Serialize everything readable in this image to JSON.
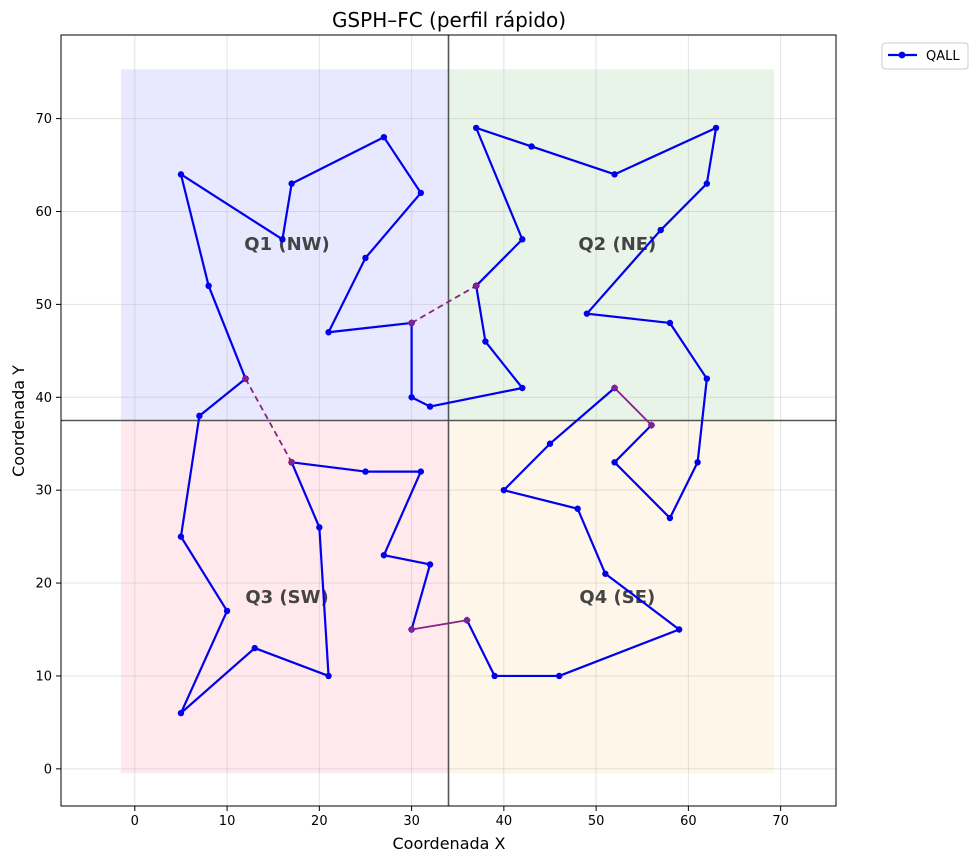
{
  "chart_data": {
    "type": "line",
    "title": "GSPH–FC (perfil rápido)",
    "xlabel": "Coordenada X",
    "ylabel": "Coordenada Y",
    "xlim": [
      -8,
      76
    ],
    "ylim": [
      -4,
      79
    ],
    "xticks": [
      "0",
      "10",
      "20",
      "30",
      "40",
      "50",
      "60",
      "70"
    ],
    "yticks": [
      "0",
      "10",
      "20",
      "30",
      "40",
      "50",
      "60",
      "70"
    ],
    "grid": true,
    "legend": {
      "placement": "top-right-outside",
      "entries": [
        "QALL"
      ]
    },
    "colors": {
      "route": "#0000ee",
      "connector": "#882288",
      "divider": "#555555",
      "q1": "#e8e8ff",
      "q2": "#e9f4e9",
      "q3": "#ffe9ec",
      "q4": "#fff6ea",
      "quadrant_label": "#444444"
    },
    "dividers": {
      "x": 34,
      "y": 37.5
    },
    "quadrants": [
      {
        "label": "Q1 (NW)",
        "x0": -1.5,
        "x1": 34,
        "y0": 37.5,
        "y1": 75.3,
        "color_key": "q1",
        "label_x": 16.5,
        "label_y": 56.5
      },
      {
        "label": "Q2 (NE)",
        "x0": 34,
        "x1": 69.3,
        "y0": 37.5,
        "y1": 75.3,
        "color_key": "q2",
        "label_x": 52.3,
        "label_y": 56.5
      },
      {
        "label": "Q3 (SW)",
        "x0": -1.5,
        "x1": 34,
        "y0": -0.5,
        "y1": 37.5,
        "color_key": "q3",
        "label_x": 16.5,
        "label_y": 18.5
      },
      {
        "label": "Q4 (SE)",
        "x0": 34,
        "x1": 69.3,
        "y0": -0.5,
        "y1": 37.5,
        "color_key": "q4",
        "label_x": 52.3,
        "label_y": 18.5
      }
    ],
    "series": [
      {
        "name": "QALL",
        "points": [
          [
            12,
            42
          ],
          [
            7,
            38
          ],
          [
            5,
            25
          ],
          [
            10,
            17
          ],
          [
            5,
            6
          ],
          [
            13,
            13
          ],
          [
            21,
            10
          ],
          [
            20,
            26
          ],
          [
            17,
            33
          ]
        ]
      },
      {
        "points": [
          [
            30,
            48
          ],
          [
            30,
            40
          ],
          [
            32,
            39
          ],
          [
            42,
            41
          ],
          [
            38,
            46
          ],
          [
            37,
            52
          ]
        ]
      },
      {
        "points": [
          [
            12,
            42
          ],
          [
            8,
            52
          ],
          [
            5,
            64
          ],
          [
            16,
            57
          ],
          [
            17,
            63
          ],
          [
            27,
            68
          ],
          [
            31,
            62
          ],
          [
            25,
            55
          ],
          [
            21,
            47
          ],
          [
            30,
            48
          ]
        ]
      },
      {
        "points": [
          [
            17,
            33
          ],
          [
            25,
            32
          ],
          [
            31,
            32
          ],
          [
            27,
            23
          ],
          [
            32,
            22
          ],
          [
            30,
            15
          ]
        ]
      },
      {
        "points": [
          [
            37,
            52
          ],
          [
            42,
            57
          ],
          [
            37,
            69
          ],
          [
            43,
            67
          ],
          [
            52,
            64
          ],
          [
            63,
            69
          ],
          [
            62,
            63
          ],
          [
            57,
            58
          ],
          [
            49,
            49
          ],
          [
            58,
            48
          ],
          [
            62,
            42
          ],
          [
            61,
            33
          ],
          [
            58,
            27
          ],
          [
            52,
            33
          ],
          [
            56,
            37
          ]
        ]
      },
      {
        "points": [
          [
            36,
            16
          ],
          [
            39,
            10
          ],
          [
            46,
            10
          ],
          [
            59,
            15
          ],
          [
            51,
            21
          ],
          [
            48,
            28
          ],
          [
            40,
            30
          ],
          [
            45,
            35
          ],
          [
            52,
            41
          ]
        ]
      }
    ],
    "connectors": [
      {
        "from": [
          12,
          42
        ],
        "to": [
          17,
          33
        ],
        "style": "dashed"
      },
      {
        "from": [
          30,
          48
        ],
        "to": [
          37,
          52
        ],
        "style": "dashed"
      },
      {
        "from": [
          30,
          15
        ],
        "to": [
          36,
          16
        ],
        "style": "solid"
      },
      {
        "from": [
          52,
          41
        ],
        "to": [
          56,
          37
        ],
        "style": "solid"
      }
    ]
  }
}
